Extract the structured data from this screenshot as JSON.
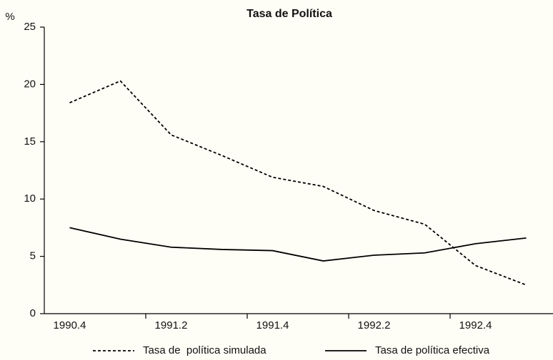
{
  "chart_data": {
    "type": "line",
    "title": "Tasa de Política",
    "y_label": "%",
    "categories": [
      "1990.4",
      null,
      "1991.2",
      null,
      "1991.4",
      null,
      "1992.2",
      null,
      "1992.4",
      null
    ],
    "series": [
      {
        "name": "Tasa de  política simulada",
        "color": "#000000",
        "dash": true,
        "values": [
          18.4,
          20.3,
          15.6,
          13.8,
          11.9,
          11.1,
          9.0,
          7.8,
          4.2,
          2.5
        ]
      },
      {
        "name": "Tasa de política efectiva",
        "color": "#000000",
        "dash": false,
        "values": [
          7.5,
          6.5,
          5.8,
          5.6,
          5.5,
          4.6,
          5.1,
          5.3,
          6.1,
          6.6
        ]
      }
    ],
    "ylim": [
      0,
      25
    ],
    "yticks": [
      0,
      5,
      10,
      15,
      20,
      25
    ],
    "grid": false
  }
}
